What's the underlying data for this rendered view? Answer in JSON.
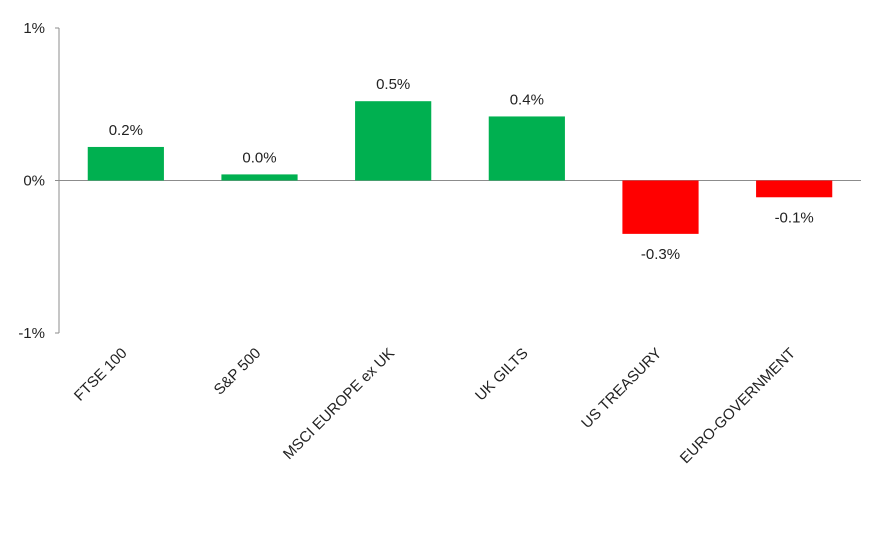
{
  "chart_data": {
    "type": "bar",
    "title": "",
    "xlabel": "",
    "ylabel": "",
    "ylim": [
      -1,
      1
    ],
    "yticks": [
      {
        "value": 1,
        "label": "1%"
      },
      {
        "value": 0,
        "label": "0%"
      },
      {
        "value": -1,
        "label": "-1%"
      }
    ],
    "categories": [
      "FTSE 100",
      "S&P 500",
      "MSCI EUROPE ex UK",
      "UK GILTS",
      "US TREASURY",
      "EURO-GOVERNMENT"
    ],
    "values": [
      0.22,
      0.04,
      0.52,
      0.42,
      -0.35,
      -0.11
    ],
    "value_labels": [
      "0.2%",
      "0.0%",
      "0.5%",
      "0.4%",
      "-0.3%",
      "-0.1%"
    ],
    "colors": {
      "positive": "#00b050",
      "negative": "#ff0000",
      "axis": "#8c8c8c"
    },
    "grid": false,
    "legend": "none"
  }
}
